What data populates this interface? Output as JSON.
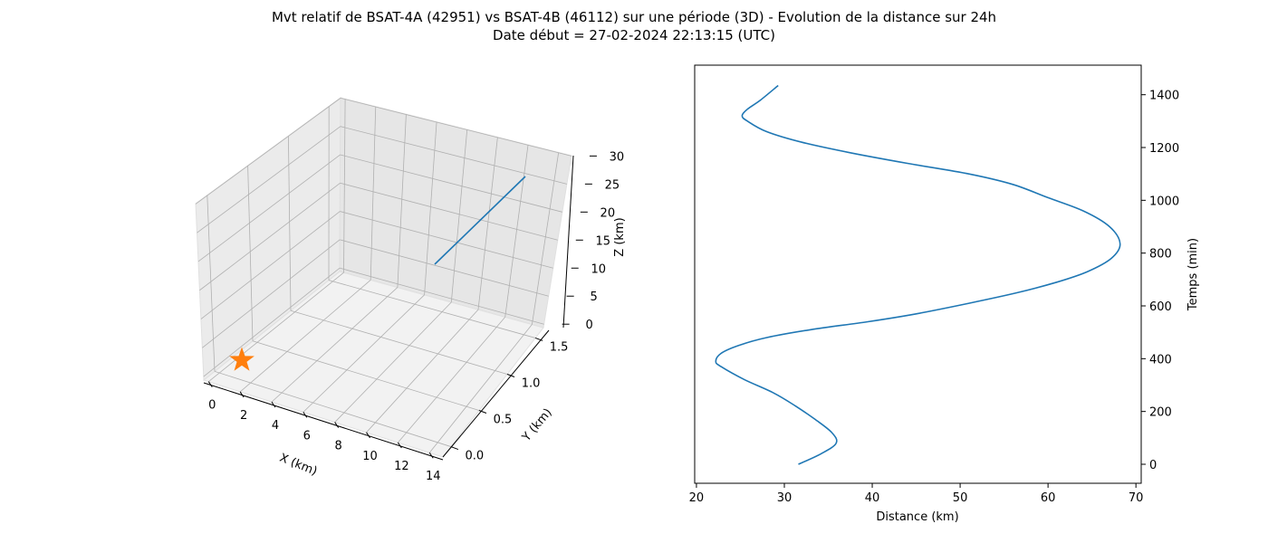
{
  "figure": {
    "title_line1": "Mvt relatif de BSAT-4A (42951) vs BSAT-4B (46112) sur une période (3D) - Evolution de la distance sur 24h",
    "title_line2": "Date début = 27-02-2024 22:13:15 (UTC)"
  },
  "chart_data": [
    {
      "type": "line",
      "projection": "3d",
      "xlabel": "X (km)",
      "ylabel": "Y (km)",
      "zlabel": "Z (km)",
      "x_ticks": [
        "0",
        "2",
        "4",
        "6",
        "8",
        "10",
        "12",
        "14"
      ],
      "y_ticks": [
        "0.0",
        "0.5",
        "1.0",
        "1.5"
      ],
      "z_ticks": [
        "0",
        "5",
        "10",
        "15",
        "20",
        "25",
        "30"
      ],
      "grid": true,
      "series_color": "#1f77b4",
      "marker_color": "#ff7f0e",
      "marker": "star",
      "marker_point": {
        "x": 0,
        "y": 0,
        "z": 0
      }
    },
    {
      "type": "line",
      "xlabel": "Distance (km)",
      "ylabel": "Temps (min)",
      "xlim": [
        19.8,
        70.6
      ],
      "ylim": [
        -72,
        1512
      ],
      "x_ticks": [
        20,
        30,
        40,
        50,
        60,
        70
      ],
      "y_ticks": [
        0,
        200,
        400,
        600,
        800,
        1000,
        1200,
        1400
      ],
      "yaxis_side": "right",
      "grid": false,
      "series_color": "#1f77b4",
      "series": [
        {
          "points": [
            [
              31.6,
              0
            ],
            [
              34.2,
              40
            ],
            [
              35.9,
              80
            ],
            [
              35.4,
              120
            ],
            [
              33.5,
              170
            ],
            [
              31.3,
              220
            ],
            [
              28.8,
              270
            ],
            [
              25.5,
              320
            ],
            [
              22.8,
              370
            ],
            [
              22.2,
              390
            ],
            [
              22.8,
              420
            ],
            [
              24.8,
              450
            ],
            [
              28.0,
              480
            ],
            [
              33.0,
              510
            ],
            [
              39.5,
              540
            ],
            [
              45.0,
              570
            ],
            [
              51.0,
              610
            ],
            [
              56.5,
              650
            ],
            [
              61.0,
              690
            ],
            [
              64.5,
              730
            ],
            [
              67.2,
              780
            ],
            [
              68.2,
              835
            ],
            [
              67.0,
              900
            ],
            [
              64.0,
              960
            ],
            [
              60.0,
              1010
            ],
            [
              56.0,
              1060
            ],
            [
              51.0,
              1100
            ],
            [
              44.0,
              1140
            ],
            [
              37.5,
              1180
            ],
            [
              32.0,
              1220
            ],
            [
              28.0,
              1260
            ],
            [
              25.8,
              1300
            ],
            [
              25.2,
              1320
            ],
            [
              25.8,
              1345
            ],
            [
              27.3,
              1380
            ],
            [
              29.3,
              1435
            ]
          ]
        }
      ]
    }
  ]
}
